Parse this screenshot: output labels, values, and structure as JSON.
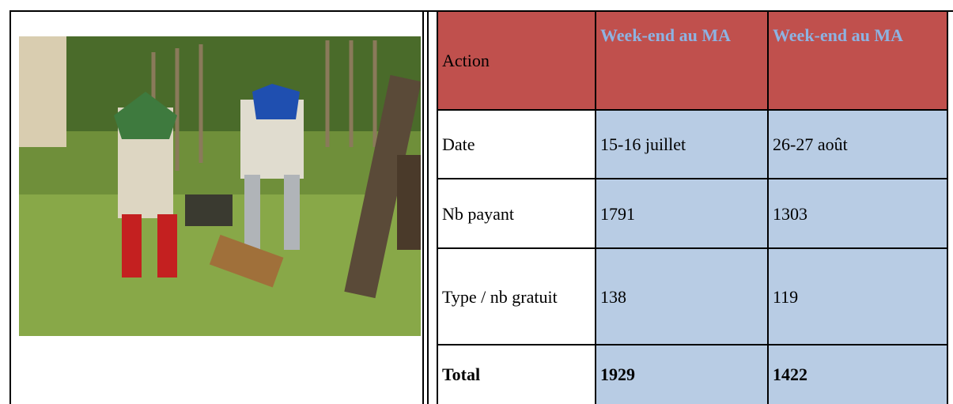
{
  "table": {
    "header": [
      "Action",
      "Week-end au MA",
      "Week-end au MA"
    ],
    "rows": [
      [
        "Date",
        "15-16 juillet",
        "26-27 août"
      ],
      [
        "Nb payant",
        "1791",
        "1303"
      ],
      [
        "Type / nb gratuit",
        "138",
        "119"
      ],
      [
        "Total",
        "1929",
        "1422"
      ]
    ]
  }
}
